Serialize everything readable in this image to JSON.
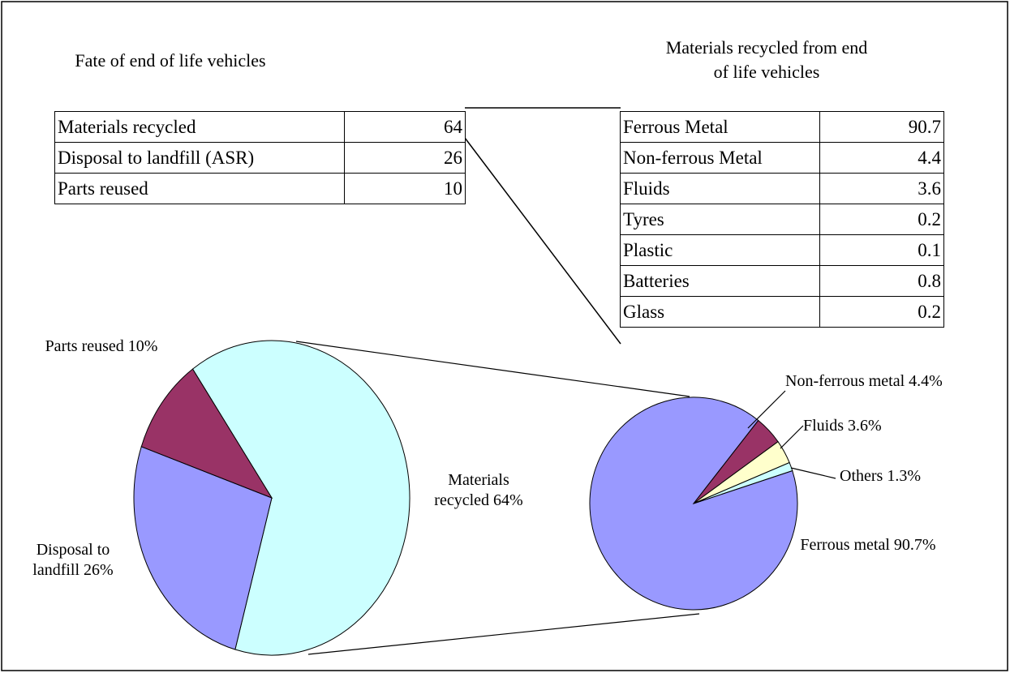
{
  "tables": [
    {
      "title": "Fate of end of life vehicles",
      "rows": [
        [
          "Materials recycled",
          64
        ],
        [
          "Disposal to landfill (ASR)",
          26
        ],
        [
          "Parts reused",
          10
        ]
      ]
    },
    {
      "title": "Materials recycled from end of life vehicles",
      "rows": [
        [
          "Ferrous Metal",
          90.7
        ],
        [
          "Non-ferrous Metal",
          4.4
        ],
        [
          "Fluids",
          3.6
        ],
        [
          "Tyres",
          0.2
        ],
        [
          "Plastic",
          0.1
        ],
        [
          "Batteries",
          0.8
        ],
        [
          "Glass",
          0.2
        ]
      ]
    }
  ],
  "chart_data": [
    {
      "type": "pie",
      "categories": [
        "Materials recycled",
        "Disposal to landfill",
        "Parts reused"
      ],
      "values": [
        64,
        26,
        10
      ],
      "value_labels": [
        "64%",
        "26%",
        "10%"
      ],
      "colors": [
        "#ccffff",
        "#9999ff",
        "#993366"
      ]
    },
    {
      "type": "pie",
      "categories": [
        "Ferrous metal",
        "Non-ferrous metal",
        "Fluids",
        "Others"
      ],
      "values": [
        90.7,
        4.4,
        3.6,
        1.3
      ],
      "value_labels": [
        "90.7%",
        "4.4%",
        "3.6%",
        "1.3%"
      ],
      "colors": [
        "#9999ff",
        "#993366",
        "#ffffcc",
        "#ccffff"
      ]
    }
  ]
}
